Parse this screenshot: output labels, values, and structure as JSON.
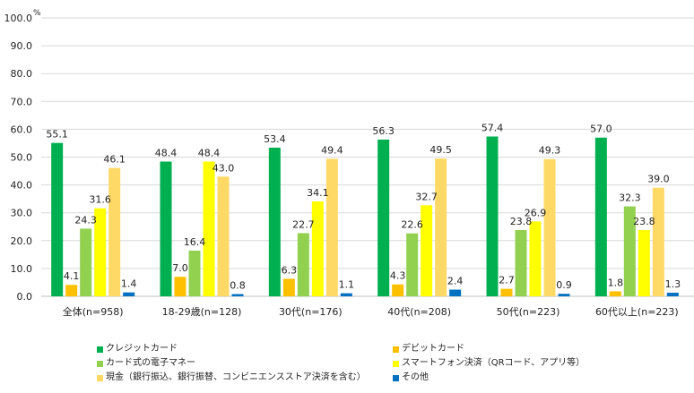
{
  "chart_data": {
    "type": "bar",
    "title": "",
    "xlabel": "",
    "ylabel": "",
    "unit_label": "%",
    "ylim": [
      0,
      100
    ],
    "yticks": [
      "0.0",
      "10.0",
      "20.0",
      "30.0",
      "40.0",
      "50.0",
      "60.0",
      "70.0",
      "80.0",
      "90.0",
      "100.0"
    ],
    "grid": true,
    "legend_position": "bottom",
    "categories": [
      "全体(n=958)",
      "18-29歳(n=128)",
      "30代(n=176)",
      "40代(n=208)",
      "50代(n=223)",
      "60代以上(n=223)"
    ],
    "series": [
      {
        "name": "クレジットカード",
        "color": "#00b050",
        "values": [
          55.1,
          48.4,
          53.4,
          56.3,
          57.4,
          57.0
        ],
        "labels": [
          "55.1",
          "48.4",
          "53.4",
          "56.3",
          "57.4",
          "57.0"
        ]
      },
      {
        "name": "デビットカード",
        "color": "#ffc000",
        "values": [
          4.1,
          7.0,
          6.3,
          4.3,
          2.7,
          1.8
        ],
        "labels": [
          "4.1",
          "7.0",
          "6.3",
          "4.3",
          "2.7",
          "1.8"
        ]
      },
      {
        "name": "カード式の電子マネー",
        "color": "#92d050",
        "values": [
          24.3,
          16.4,
          22.7,
          22.6,
          23.8,
          32.3
        ],
        "labels": [
          "24.3",
          "16.4",
          "22.7",
          "22.6",
          "23.8",
          "32.3"
        ]
      },
      {
        "name": "スマートフォン決済（QRコード、アプリ等）",
        "color": "#ffff00",
        "values": [
          31.6,
          48.4,
          34.1,
          32.7,
          26.9,
          23.8
        ],
        "labels": [
          "31.6",
          "48.4",
          "34.1",
          "32.7",
          "26.9",
          "23.8"
        ]
      },
      {
        "name": "現金（銀行振込、銀行振替、コンビニエンスストア決済を含む）",
        "color": "#ffd966",
        "values": [
          46.1,
          43.0,
          49.4,
          49.5,
          49.3,
          39.0
        ],
        "labels": [
          "46.1",
          "43.0",
          "49.4",
          "49.5",
          "49.3",
          "39.0"
        ]
      },
      {
        "name": "その他",
        "color": "#0070c0",
        "values": [
          1.4,
          0.8,
          1.1,
          2.4,
          0.9,
          1.3
        ],
        "labels": [
          "1.4",
          "0.8",
          "1.1",
          "2.4",
          "0.9",
          "1.3"
        ]
      }
    ],
    "legend_order": [
      0,
      1,
      2,
      3,
      4,
      5
    ]
  }
}
